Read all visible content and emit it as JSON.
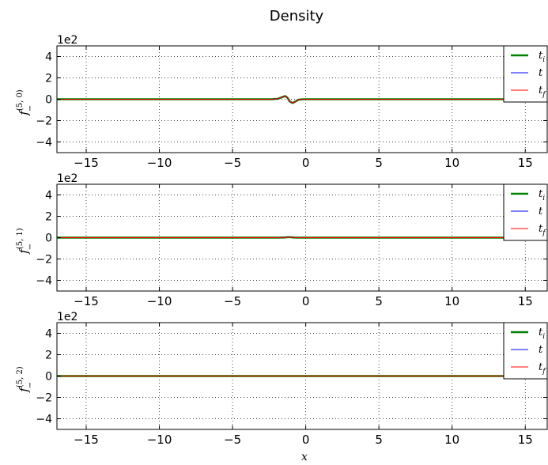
{
  "figure": {
    "title": "Density"
  },
  "chart_data": [
    {
      "type": "line",
      "ylabel": "f_-^{(5,0)}",
      "ylabel_main": "f",
      "ylabel_sub": "−",
      "ylabel_sup": "(5, 0)",
      "xlabel": "",
      "offset_text": "1e2",
      "xlim": [
        -17,
        16.5
      ],
      "ylim": [
        -5,
        5
      ],
      "xticks": [
        -15,
        -10,
        -5,
        0,
        5,
        10,
        15
      ],
      "yticks": [
        4,
        2,
        0,
        -2,
        -4
      ],
      "grid": true,
      "legend_position": "top-right",
      "series": [
        {
          "name": "t_i",
          "label_main": "t",
          "label_sub": "i",
          "color": "#008000",
          "width": 2.5,
          "x": [
            -17,
            -2.3,
            -1.9,
            -1.6,
            -1.4,
            -1.25,
            -1.1,
            -0.9,
            -0.75,
            -0.5,
            -0.2,
            16.5
          ],
          "y": [
            0,
            0,
            0.05,
            0.2,
            0.3,
            0.15,
            -0.2,
            -0.35,
            -0.25,
            -0.05,
            0,
            0
          ]
        },
        {
          "name": "t",
          "label_main": "t",
          "label_sub": "",
          "color": "#0000ff",
          "width": 1,
          "x": [
            -17,
            -2.3,
            -1.9,
            -1.6,
            -1.4,
            -1.25,
            -1.1,
            -0.9,
            -0.75,
            -0.5,
            -0.2,
            16.5
          ],
          "y": [
            0,
            0,
            0.05,
            0.2,
            0.3,
            0.15,
            -0.2,
            -0.35,
            -0.25,
            -0.05,
            0,
            0
          ]
        },
        {
          "name": "t_f",
          "label_main": "t",
          "label_sub": "f",
          "color": "#ff0000",
          "width": 1,
          "x": [
            -17,
            -2.3,
            -1.9,
            -1.6,
            -1.4,
            -1.25,
            -1.1,
            -0.9,
            -0.75,
            -0.5,
            -0.2,
            16.5
          ],
          "y": [
            0,
            0,
            0.05,
            0.2,
            0.3,
            0.15,
            -0.2,
            -0.35,
            -0.25,
            -0.05,
            0,
            0
          ]
        }
      ]
    },
    {
      "type": "line",
      "ylabel": "f_-^{(5,1)}",
      "ylabel_main": "f",
      "ylabel_sub": "−",
      "ylabel_sup": "(5, 1)",
      "xlabel": "",
      "offset_text": "1e2",
      "xlim": [
        -17,
        16.5
      ],
      "ylim": [
        -5,
        5
      ],
      "xticks": [
        -15,
        -10,
        -5,
        0,
        5,
        10,
        15
      ],
      "yticks": [
        4,
        2,
        0,
        -2,
        -4
      ],
      "grid": true,
      "legend_position": "top-right",
      "series": [
        {
          "name": "t_i",
          "label_main": "t",
          "label_sub": "i",
          "color": "#008000",
          "width": 2.5,
          "x": [
            -17,
            -1.8,
            -1.4,
            -1.2,
            -1.0,
            -0.8,
            -0.5,
            16.5
          ],
          "y": [
            0,
            0,
            0.02,
            0.05,
            0.04,
            0.01,
            0,
            0
          ]
        },
        {
          "name": "t",
          "label_main": "t",
          "label_sub": "",
          "color": "#0000ff",
          "width": 1,
          "x": [
            -17,
            -1.8,
            -1.4,
            -1.2,
            -1.0,
            -0.8,
            -0.5,
            16.5
          ],
          "y": [
            0,
            0,
            0.02,
            0.05,
            0.04,
            0.01,
            0,
            0
          ]
        },
        {
          "name": "t_f",
          "label_main": "t",
          "label_sub": "f",
          "color": "#ff0000",
          "width": 1,
          "x": [
            -17,
            -1.8,
            -1.4,
            -1.2,
            -1.0,
            -0.8,
            -0.5,
            16.5
          ],
          "y": [
            0,
            0,
            0.02,
            0.05,
            0.04,
            0.01,
            0,
            0
          ]
        }
      ]
    },
    {
      "type": "line",
      "ylabel": "f_-^{(5,2)}",
      "ylabel_main": "f",
      "ylabel_sub": "−",
      "ylabel_sup": "(5, 2)",
      "xlabel": "x",
      "offset_text": "1e2",
      "xlim": [
        -17,
        16.5
      ],
      "ylim": [
        -5,
        5
      ],
      "xticks": [
        -15,
        -10,
        -5,
        0,
        5,
        10,
        15
      ],
      "yticks": [
        4,
        2,
        0,
        -2,
        -4
      ],
      "grid": true,
      "legend_position": "top-right",
      "series": [
        {
          "name": "t_i",
          "label_main": "t",
          "label_sub": "i",
          "color": "#008000",
          "width": 2.5,
          "x": [
            -17,
            16.5
          ],
          "y": [
            0,
            0
          ]
        },
        {
          "name": "t",
          "label_main": "t",
          "label_sub": "",
          "color": "#0000ff",
          "width": 1,
          "x": [
            -17,
            16.5
          ],
          "y": [
            0,
            0
          ]
        },
        {
          "name": "t_f",
          "label_main": "t",
          "label_sub": "f",
          "color": "#ff0000",
          "width": 1,
          "x": [
            -17,
            16.5
          ],
          "y": [
            0,
            0
          ]
        }
      ]
    }
  ]
}
